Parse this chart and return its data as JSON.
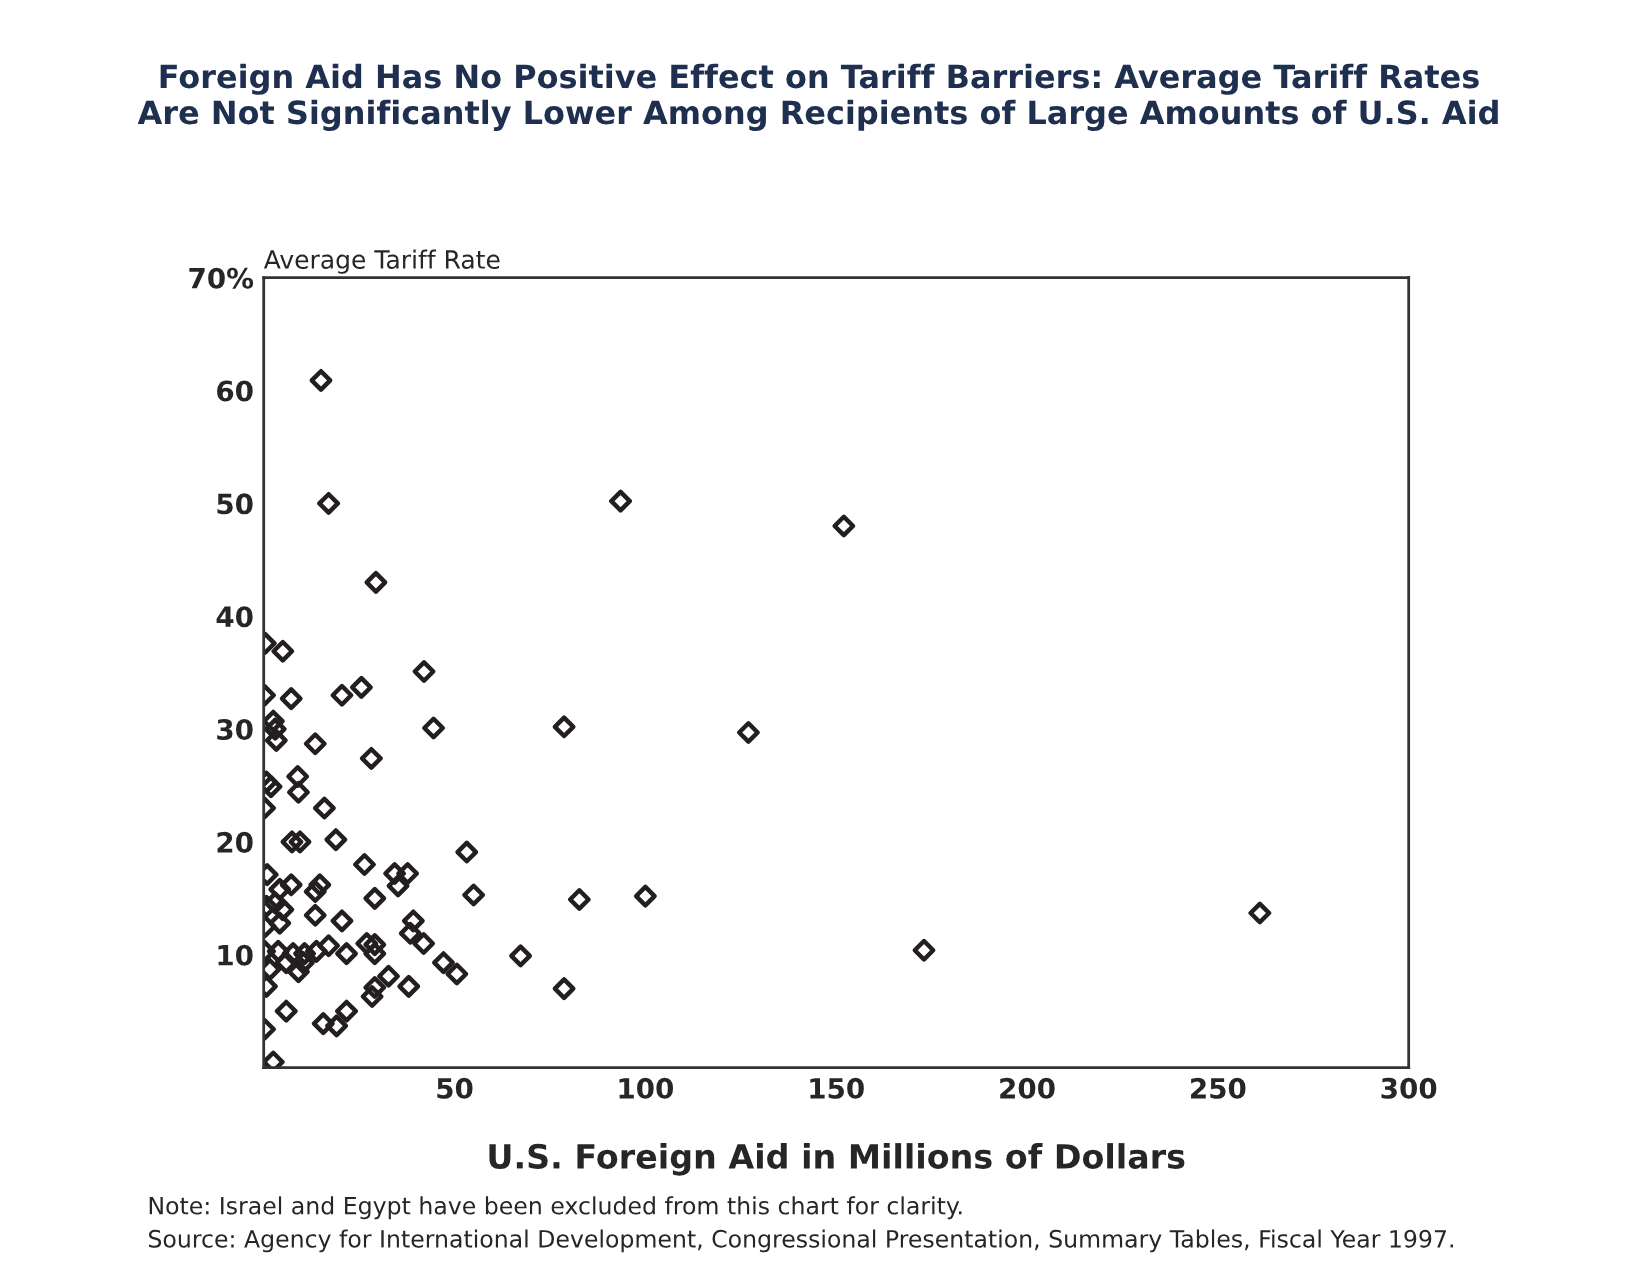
{
  "chart_data": {
    "type": "scatter",
    "title": "Foreign Aid Has No Positive Effect on Tariff Barriers: Average Tariff Rates\nAre Not Significantly Lower Among Recipients of Large Amounts of U.S. Aid",
    "xlabel": "U.S. Foreign Aid in Millions of Dollars",
    "ylabel": "Average Tariff Rate",
    "annotations": [
      "Note: Israel and Egypt have been excluded from this chart for clarity.",
      "Source: Agency for International Development, Congressional Presentation, Summary Tables, Fiscal Year 1997."
    ],
    "marker": "diamond",
    "series": [
      {
        "color": "#231f20",
        "x": [
          15,
          17,
          29.4,
          0.4,
          5,
          42,
          93.5,
          152,
          78.7,
          127,
          82.7,
          100,
          78.7,
          173,
          261,
          0.2,
          7.2,
          20.5,
          25.6,
          2.5,
          3,
          3.3,
          13.5,
          44.5,
          28.2,
          0.7,
          1.9,
          8.9,
          9.1,
          0.2,
          15.9,
          7.4,
          9.5,
          18.9,
          53.2,
          0.9,
          26.4,
          34.3,
          37.7,
          35.2,
          14.7,
          13.5,
          7.2,
          4.2,
          29.1,
          55,
          0.7,
          3,
          5,
          13.5,
          20.5,
          39.2,
          0.4,
          4.2,
          38.4,
          41.9,
          27,
          29.1,
          29.1,
          21.7,
          17,
          13.8,
          10.7,
          7.7,
          3.8,
          0.2,
          5.9,
          10.4,
          9.1,
          1.6,
          67.3,
          47.1,
          50.6,
          32.7,
          38,
          0.7,
          29.1,
          28.4,
          5.9,
          21.7,
          19.1,
          15.6,
          0.2,
          2.5
        ],
        "values": [
          60.9,
          50,
          43,
          37.6,
          36.9,
          35.1,
          50.2,
          48,
          30.2,
          29.7,
          14.9,
          15.2,
          7,
          10.4,
          13.7,
          33,
          32.7,
          33,
          33.7,
          30.7,
          30,
          29,
          28.7,
          30.1,
          27.4,
          25.3,
          24.9,
          25.8,
          24.4,
          23,
          23,
          20,
          20,
          20.2,
          19.1,
          17.1,
          18,
          17.2,
          17.2,
          16.1,
          16.2,
          15.6,
          16.2,
          15.8,
          15,
          15.3,
          14.3,
          14.6,
          14,
          13.5,
          13,
          13,
          12.5,
          12.8,
          11.9,
          11,
          11,
          10.9,
          10.1,
          10.1,
          10.8,
          10.3,
          10.1,
          10.1,
          10.3,
          10.3,
          9.3,
          9.3,
          8.5,
          8.7,
          9.9,
          9.3,
          8.3,
          8.1,
          7.2,
          7.2,
          7.1,
          6.3,
          5,
          5,
          3.7,
          3.9,
          3.4,
          0.5
        ]
      }
    ],
    "xlim": [
      0,
      300
    ],
    "xticks": [
      50,
      100,
      150,
      200,
      250,
      300
    ],
    "ylim": [
      0,
      70
    ],
    "yticks": [
      10,
      20,
      30,
      40,
      50,
      60,
      {
        "value": 70,
        "label": "70%"
      }
    ]
  }
}
